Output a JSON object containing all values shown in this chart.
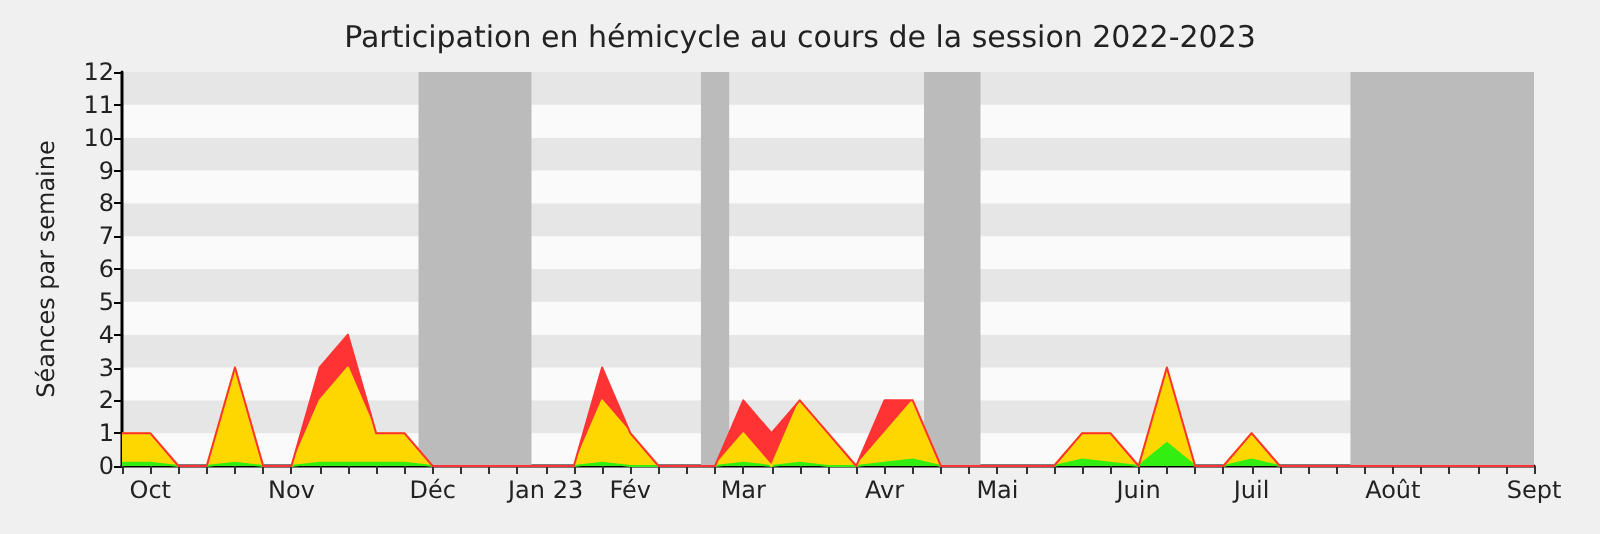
{
  "chart_data": {
    "type": "area",
    "stacked": true,
    "title": "Participation en hémicycle au cours de la session 2022-2023",
    "ylabel": "Séances par semaine",
    "categories": [
      null,
      "Oct",
      null,
      null,
      null,
      null,
      "Nov",
      null,
      null,
      null,
      null,
      "Déc",
      null,
      null,
      null,
      "Jan 23",
      null,
      null,
      "Fév",
      null,
      null,
      null,
      "Mar",
      null,
      null,
      null,
      null,
      "Avr",
      null,
      null,
      null,
      "Mai",
      null,
      null,
      null,
      null,
      "Juin",
      null,
      null,
      null,
      "Juil",
      null,
      null,
      null,
      null,
      "Août",
      null,
      null,
      null,
      null,
      "Sept"
    ],
    "series": [
      {
        "color": "#33ee11",
        "values": [
          0.1,
          0.1,
          0,
          0,
          0.1,
          0,
          0,
          0.1,
          0.1,
          0.1,
          0.1,
          0,
          0,
          0,
          0,
          0,
          0,
          0.1,
          0,
          0,
          0,
          0,
          0.1,
          0,
          0.1,
          0,
          0,
          0.1,
          0.2,
          0,
          0,
          0,
          0,
          0,
          0.2,
          0.1,
          0,
          0.7,
          0,
          0,
          0.2,
          0,
          0,
          0,
          0,
          0,
          0,
          0,
          0,
          0,
          0
        ]
      },
      {
        "color": "#ffd700",
        "values": [
          0.9,
          0.9,
          0,
          0,
          2.9,
          0,
          0,
          1.9,
          2.9,
          0.9,
          0.9,
          0,
          0,
          0,
          0,
          0,
          0,
          1.9,
          1,
          0,
          0,
          0,
          0.9,
          0,
          1.9,
          1,
          0,
          0.9,
          1.8,
          0,
          0,
          0,
          0,
          0,
          0.8,
          0.9,
          0,
          2.3,
          0,
          0,
          0.8,
          0,
          0,
          0,
          0,
          0,
          0,
          0,
          0,
          0,
          0
        ]
      },
      {
        "color": "#ff3333",
        "values": [
          0,
          0,
          0,
          0,
          0,
          0,
          0,
          1,
          1,
          0,
          0,
          0,
          0,
          0,
          0,
          0,
          0,
          1,
          0,
          0,
          0,
          0,
          1,
          1,
          0,
          0,
          0,
          1,
          0,
          0,
          0,
          0,
          0,
          0,
          0,
          0,
          0,
          0,
          0,
          0,
          0,
          0,
          0,
          0,
          0,
          0,
          0,
          0,
          0,
          0,
          0
        ]
      }
    ],
    "ylim": [
      0,
      12
    ],
    "yticks": [
      0,
      1,
      2,
      3,
      4,
      5,
      6,
      7,
      8,
      9,
      10,
      11,
      12
    ]
  }
}
